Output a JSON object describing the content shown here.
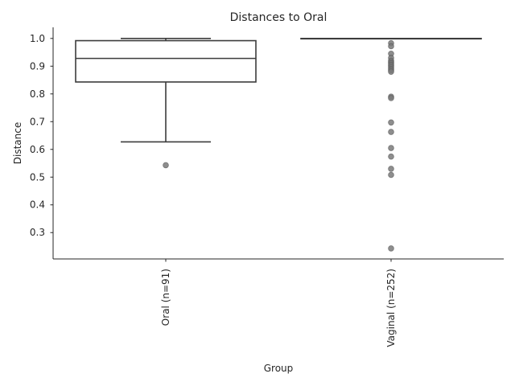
{
  "chart_data": {
    "type": "box",
    "title": "Distances to Oral",
    "xlabel": "Group",
    "ylabel": "Distance",
    "categories": [
      "Oral (n=91)",
      "Vaginal (n=252)"
    ],
    "ylim": [
      0.205,
      1.04
    ],
    "y_ticks": [
      0.3,
      0.4,
      0.5,
      0.6,
      0.7,
      0.8,
      0.9,
      1.0
    ],
    "y_tick_labels": [
      "0.3",
      "0.4",
      "0.5",
      "0.6",
      "0.7",
      "0.8",
      "0.9",
      "1.0"
    ],
    "grid": false,
    "box_color": "#ffffff",
    "line_color": "#3c3c3c",
    "boxes": [
      {
        "q1": 0.843,
        "median": 0.928,
        "q3": 0.992,
        "whisker_low": 0.627,
        "whisker_high": 1.0,
        "fliers": [
          0.543
        ]
      },
      {
        "q1": 1.0,
        "median": 1.0,
        "q3": 1.0,
        "whisker_low": 1.0,
        "whisker_high": 1.0,
        "fliers": [
          0.983,
          0.972,
          0.945,
          0.93,
          0.92,
          0.915,
          0.91,
          0.905,
          0.9,
          0.895,
          0.89,
          0.885,
          0.88,
          0.79,
          0.785,
          0.697,
          0.663,
          0.605,
          0.574,
          0.53,
          0.508,
          0.243
        ]
      }
    ]
  }
}
